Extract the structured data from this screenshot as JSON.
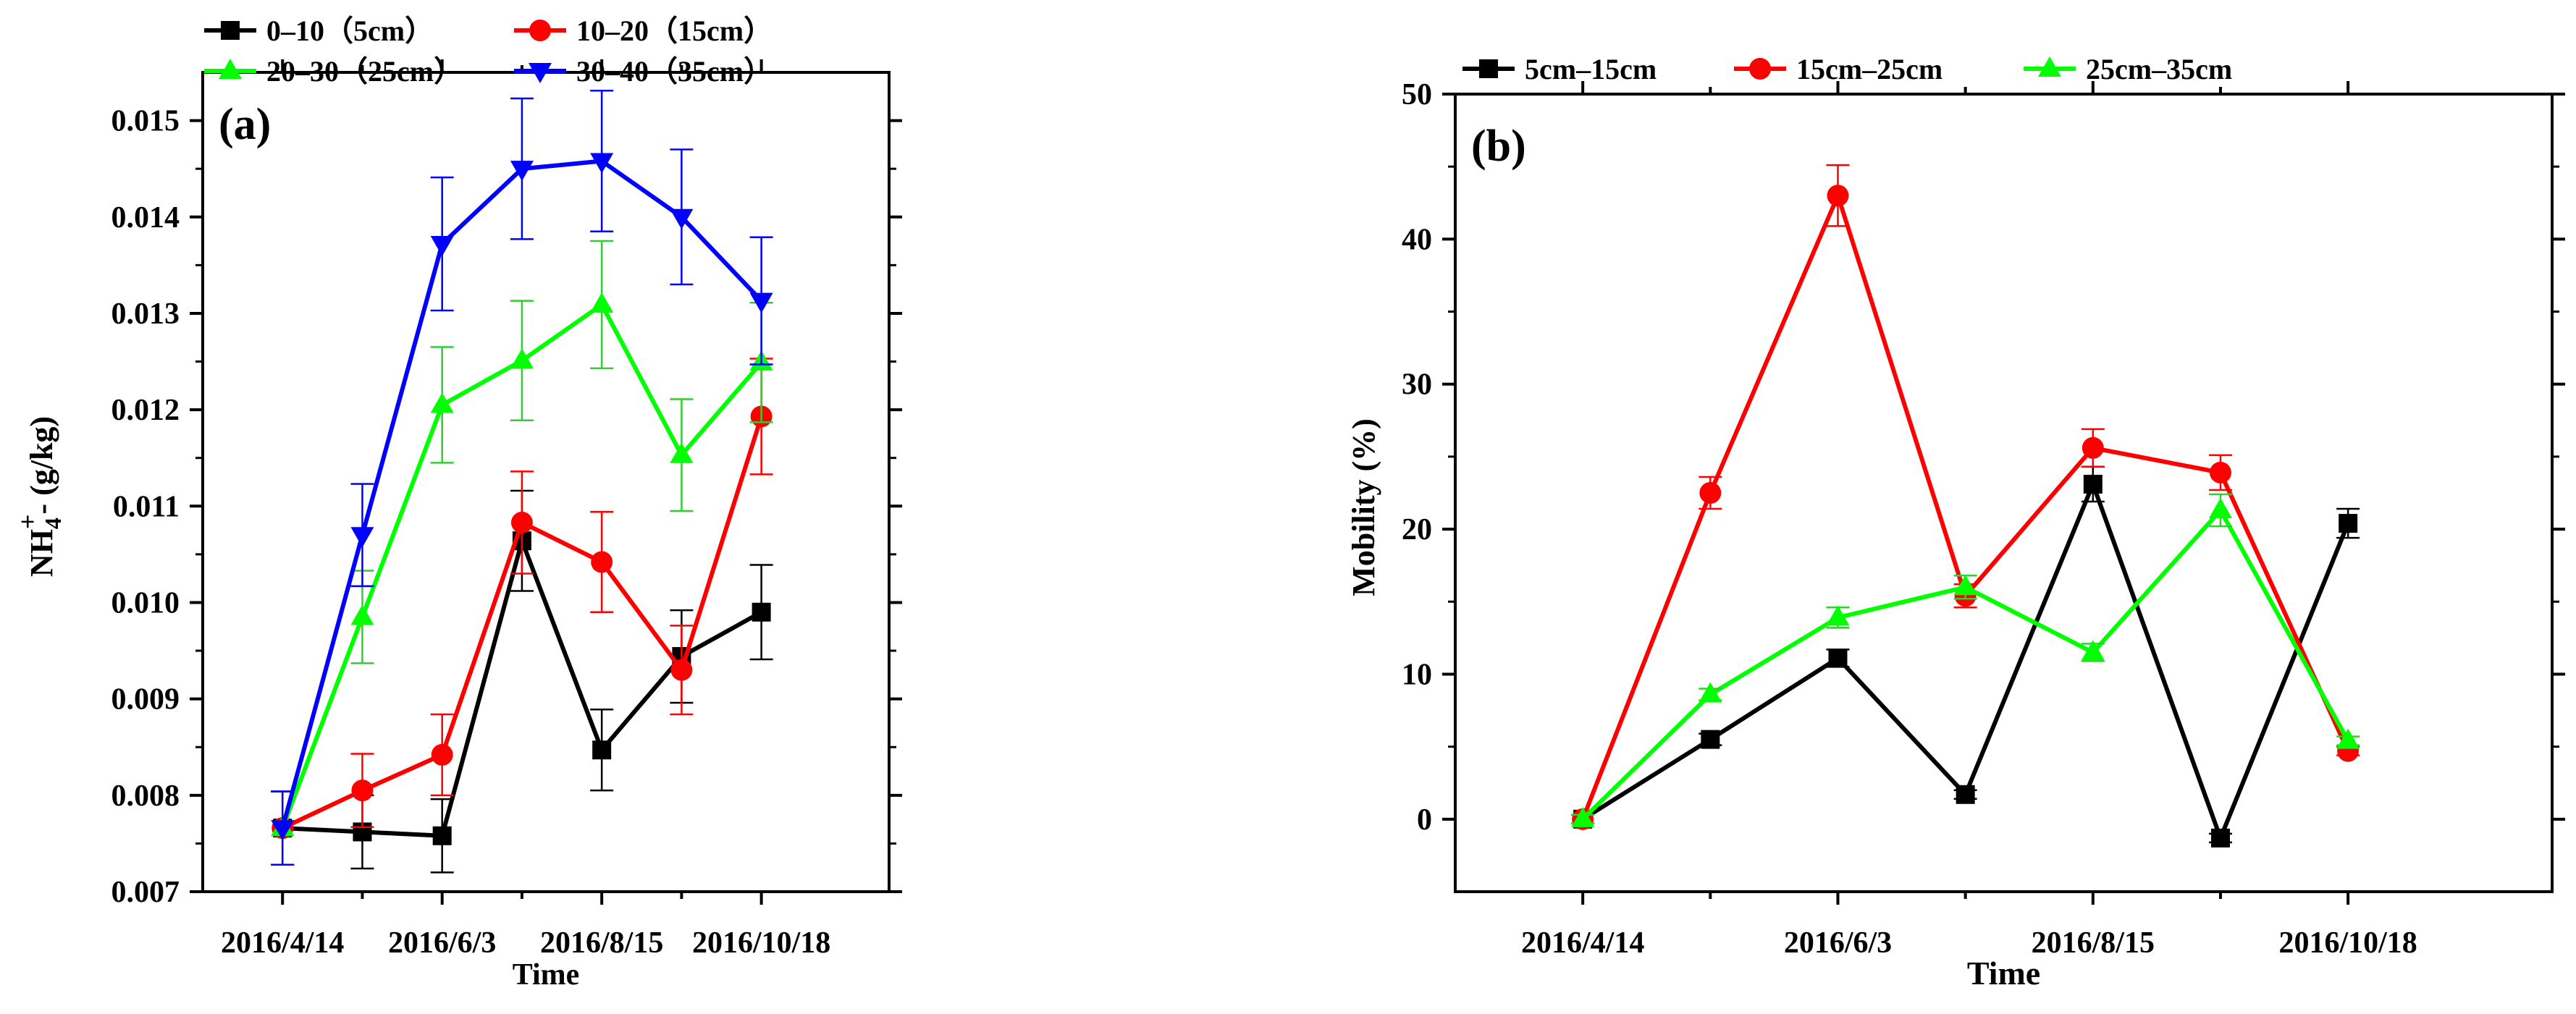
{
  "chart_data": [
    {
      "type": "line",
      "panel_label": "(a)",
      "xlabel": "Time",
      "ylabel_main": "NH",
      "ylabel_sub": "4",
      "ylabel_sup": "+",
      "ylabel_rest": "- (g/kg)",
      "x": [
        0,
        1,
        2,
        3,
        4,
        5,
        6
      ],
      "xlim": [
        -1,
        7.6
      ],
      "xticks": [
        0,
        2,
        4,
        6
      ],
      "xticklabels": [
        "2016/4/14",
        "2016/6/3",
        "2016/8/15",
        "2016/10/18"
      ],
      "ylim": [
        0.007,
        0.0155
      ],
      "yticks": [
        0.007,
        0.008,
        0.009,
        0.01,
        0.011,
        0.012,
        0.013,
        0.014,
        0.015
      ],
      "yticklabels": [
        "0.007",
        "0.008",
        "0.009",
        "0.010",
        "0.011",
        "0.012",
        "0.013",
        "0.014",
        "0.015"
      ],
      "grid": false,
      "legend_position": "top-left",
      "series": [
        {
          "name": "0–10（5cm）",
          "color": "#000000",
          "marker": "square",
          "values": [
            0.00766,
            0.00762,
            0.00758,
            0.01064,
            0.00847,
            0.00944,
            0.0099
          ],
          "errors": [
            0.00038,
            0.00038,
            0.00038,
            0.00052,
            0.00042,
            0.00048,
            0.00049
          ]
        },
        {
          "name": "10–20（15cm）",
          "color": "#ff0000",
          "marker": "circle",
          "values": [
            0.00766,
            0.00805,
            0.00842,
            0.01083,
            0.01042,
            0.0093,
            0.01193
          ],
          "errors": [
            0.00038,
            0.00038,
            0.00042,
            0.00053,
            0.00052,
            0.00046,
            0.0006
          ]
        },
        {
          "name": "20–30（25cm）",
          "color": "#00ff00",
          "marker": "triangle-up",
          "values": [
            0.00766,
            0.00985,
            0.01205,
            0.01251,
            0.01309,
            0.01153,
            0.01249
          ],
          "errors": [
            0.00038,
            0.00048,
            0.0006,
            0.00062,
            0.00066,
            0.00058,
            0.00062
          ]
        },
        {
          "name": "30–40（35cm）",
          "color": "#0000ff",
          "marker": "triangle-down",
          "values": [
            0.00766,
            0.0107,
            0.01372,
            0.0145,
            0.01458,
            0.014,
            0.01313
          ],
          "errors": [
            0.00038,
            0.00053,
            0.00069,
            0.00073,
            0.00073,
            0.0007,
            0.00066
          ]
        }
      ]
    },
    {
      "type": "line",
      "panel_label": "(b)",
      "xlabel": "Time",
      "ylabel": "Mobility (%)",
      "x": [
        0,
        1,
        2,
        3,
        4,
        5,
        6
      ],
      "xlim": [
        -1,
        7.6
      ],
      "xticks": [
        0,
        2,
        4,
        6
      ],
      "xticklabels": [
        "2016/4/14",
        "2016/6/3",
        "2016/8/15",
        "2016/10/18"
      ],
      "ylim": [
        -5,
        50
      ],
      "yticks": [
        0,
        10,
        20,
        30,
        40,
        50
      ],
      "yticklabels": [
        "0",
        "10",
        "20",
        "30",
        "40",
        "50"
      ],
      "grid": false,
      "legend_position": "top-left",
      "series": [
        {
          "name": "5cm–15cm",
          "color": "#000000",
          "marker": "square",
          "values": [
            0,
            5.5,
            11.1,
            1.7,
            23.1,
            -1.3,
            20.4
          ],
          "errors": [
            0.3,
            0.4,
            0.6,
            0.3,
            1.2,
            0.3,
            1.0
          ]
        },
        {
          "name": "15cm–25cm",
          "color": "#ff0000",
          "marker": "circle",
          "values": [
            0,
            22.5,
            43.0,
            15.4,
            25.6,
            23.9,
            4.7
          ],
          "errors": [
            0.3,
            1.1,
            2.1,
            0.8,
            1.3,
            1.2,
            0.3
          ]
        },
        {
          "name": "25cm–35cm",
          "color": "#00ff00",
          "marker": "triangle-up",
          "values": [
            0,
            8.6,
            13.9,
            16.0,
            11.5,
            21.3,
            5.4
          ],
          "errors": [
            0.3,
            0.4,
            0.7,
            0.8,
            0.6,
            1.1,
            0.3
          ]
        }
      ]
    }
  ]
}
